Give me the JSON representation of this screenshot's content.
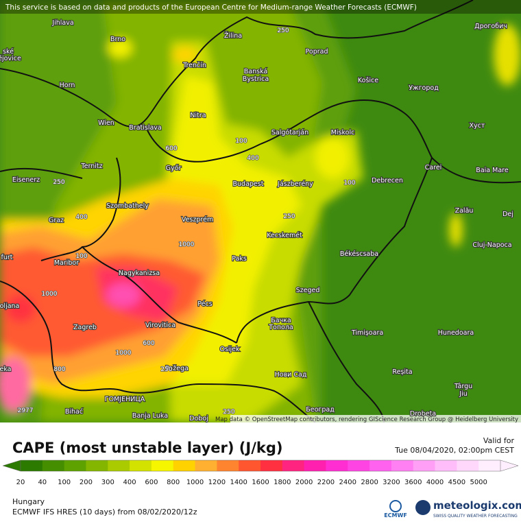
{
  "header": {
    "attribution": "This service is based on data and products of the European Centre for Medium-range Weather Forecasts (ECMWF)"
  },
  "map": {
    "credits": "Map data © OpenStreetMap contributors, rendering GIScience Research Group @ Heidelberg University",
    "cities": [
      "Jihlava",
      "Brno",
      "Žilina",
      "Poprad",
      "Дрогобич",
      "Trenčín",
      "Banská",
      "Bystrica",
      "Košice",
      "Ужгород",
      "Horn",
      "Nitra",
      "Wien",
      "Bratislava",
      "Salgótarján",
      "Miskolc",
      "Хуст",
      "Ternitz",
      "Győr",
      "Budapest",
      "Jászberény",
      "Debrecen",
      "Carei",
      "Baia Mare",
      "Eisenerz",
      "Szombathely",
      "Veszprém",
      "Zalău",
      "Dej",
      "Graz",
      "Kecskemét",
      "Cluj-Napoca",
      "Maribor",
      "Paks",
      "Békéscsaba",
      "Nagykanizsa",
      "Szeged",
      "Pécs",
      "Virovitica",
      "Zagreb",
      "Бачка",
      "Топола",
      "Timișoara",
      "Hunedoara",
      "Osijek",
      "Нови Сад",
      "Reșita",
      "Požega",
      "Târgu",
      "Jiu",
      "ГОМЈЕНИЦА",
      "Bihać",
      "Banja Luka",
      "Doboj",
      "Београд",
      "Drobeta",
      "ské",
      "ějovice",
      "furt",
      "oljana",
      "eka"
    ],
    "contour_labels": [
      "600",
      "100",
      "400",
      "250",
      "400",
      "100",
      "250",
      "1000",
      "100",
      "1000",
      "600",
      "1000",
      "800",
      "250",
      "250",
      "250",
      "2977"
    ]
  },
  "legend": {
    "title": "CAPE (most unstable layer) (J/kg)",
    "valid_label": "Valid for",
    "valid_time": "Tue 08/04/2020, 02:00pm CEST",
    "items": [
      {
        "value": 20,
        "color": "#2c7a00"
      },
      {
        "value": 40,
        "color": "#448e00"
      },
      {
        "value": 100,
        "color": "#5ea200"
      },
      {
        "value": 200,
        "color": "#84b600"
      },
      {
        "value": 300,
        "color": "#aacb00"
      },
      {
        "value": 400,
        "color": "#d4e200"
      },
      {
        "value": 600,
        "color": "#f6f600"
      },
      {
        "value": 800,
        "color": "#ffd200"
      },
      {
        "value": 1000,
        "color": "#ffb030"
      },
      {
        "value": 1200,
        "color": "#ff8430"
      },
      {
        "value": 1400,
        "color": "#ff5630"
      },
      {
        "value": 1600,
        "color": "#ff3040"
      },
      {
        "value": 1800,
        "color": "#ff2480"
      },
      {
        "value": 2000,
        "color": "#ff20b0"
      },
      {
        "value": 2200,
        "color": "#ff2ed2"
      },
      {
        "value": 2400,
        "color": "#ff44e4"
      },
      {
        "value": 2800,
        "color": "#ff62ee"
      },
      {
        "value": 3200,
        "color": "#ff80f2"
      },
      {
        "value": 3600,
        "color": "#ffa0f6"
      },
      {
        "value": 4000,
        "color": "#ffbefa"
      },
      {
        "value": 4500,
        "color": "#ffd8fc"
      },
      {
        "value": 5000,
        "color": "#ffeefe"
      }
    ]
  },
  "footer": {
    "region": "Hungary",
    "model": "ECMWF IFS HRES (10 days) from 08/02/2020/12z",
    "ecmwf_logo": "ECMWF",
    "meteologix_logo": "meteologix.com",
    "tagline": "SWISS QUALITY WEATHER FORECASTING"
  }
}
